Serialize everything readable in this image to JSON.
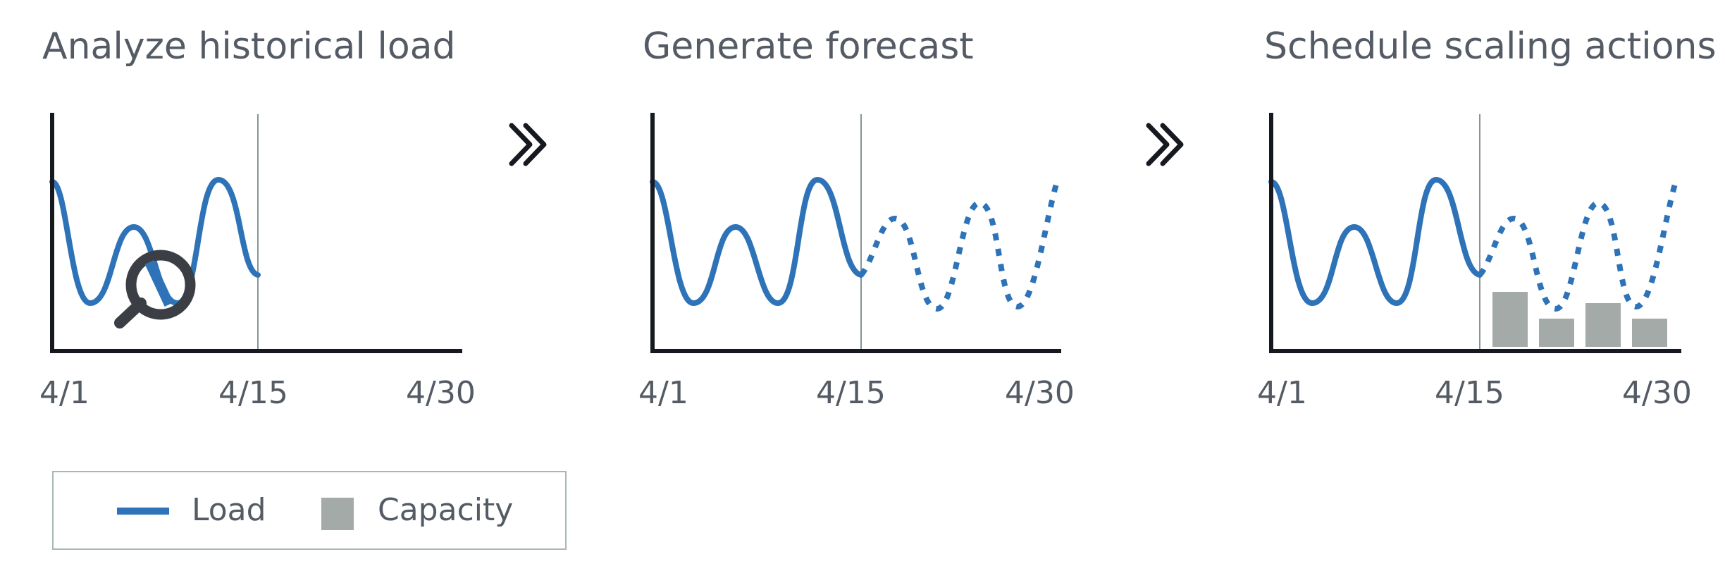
{
  "steps": [
    {
      "title": "Analyze historical load",
      "ticks": [
        "4/1",
        "4/15",
        "4/30"
      ]
    },
    {
      "title": "Generate forecast",
      "ticks": [
        "4/1",
        "4/15",
        "4/30"
      ]
    },
    {
      "title": "Schedule scaling actions",
      "ticks": [
        "4/1",
        "4/15",
        "4/30"
      ]
    }
  ],
  "legend": {
    "load_label": "Load",
    "capacity_label": "Capacity"
  },
  "icons": {
    "step_arrow": "double-chevron-right-icon",
    "analyze": "magnifier-icon"
  },
  "colors": {
    "load": "#2e73b8",
    "capacity": "#a3aaa8",
    "axis": "#16191f",
    "divider": "#879596",
    "text": "#545b64"
  }
}
